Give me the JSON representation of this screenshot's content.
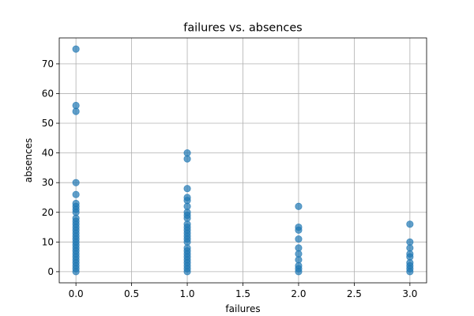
{
  "chart_data": {
    "type": "scatter",
    "title": "failures vs. absences",
    "xlabel": "failures",
    "ylabel": "absences",
    "xlim": [
      -0.15,
      3.15
    ],
    "ylim": [
      -3.75,
      78.75
    ],
    "xticks": [
      0.0,
      0.5,
      1.0,
      1.5,
      2.0,
      2.5,
      3.0
    ],
    "xtick_labels": [
      "0.0",
      "0.5",
      "1.0",
      "1.5",
      "2.0",
      "2.5",
      "3.0"
    ],
    "yticks": [
      0,
      10,
      20,
      30,
      40,
      50,
      60,
      70
    ],
    "ytick_labels": [
      "0",
      "10",
      "20",
      "30",
      "40",
      "50",
      "60",
      "70"
    ],
    "grid": true,
    "point_color": "#1f77b4",
    "point_alpha": 0.7,
    "points": [
      {
        "x": 0,
        "y": 0
      },
      {
        "x": 0,
        "y": 1
      },
      {
        "x": 0,
        "y": 2
      },
      {
        "x": 0,
        "y": 3
      },
      {
        "x": 0,
        "y": 4
      },
      {
        "x": 0,
        "y": 5
      },
      {
        "x": 0,
        "y": 6
      },
      {
        "x": 0,
        "y": 7
      },
      {
        "x": 0,
        "y": 8
      },
      {
        "x": 0,
        "y": 9
      },
      {
        "x": 0,
        "y": 10
      },
      {
        "x": 0,
        "y": 11
      },
      {
        "x": 0,
        "y": 12
      },
      {
        "x": 0,
        "y": 13
      },
      {
        "x": 0,
        "y": 14
      },
      {
        "x": 0,
        "y": 15
      },
      {
        "x": 0,
        "y": 16
      },
      {
        "x": 0,
        "y": 17
      },
      {
        "x": 0,
        "y": 18
      },
      {
        "x": 0,
        "y": 20
      },
      {
        "x": 0,
        "y": 21
      },
      {
        "x": 0,
        "y": 22
      },
      {
        "x": 0,
        "y": 23
      },
      {
        "x": 0,
        "y": 26
      },
      {
        "x": 0,
        "y": 30
      },
      {
        "x": 0,
        "y": 54
      },
      {
        "x": 0,
        "y": 56
      },
      {
        "x": 0,
        "y": 75
      },
      {
        "x": 1,
        "y": 0
      },
      {
        "x": 1,
        "y": 1
      },
      {
        "x": 1,
        "y": 2
      },
      {
        "x": 1,
        "y": 3
      },
      {
        "x": 1,
        "y": 4
      },
      {
        "x": 1,
        "y": 5
      },
      {
        "x": 1,
        "y": 6
      },
      {
        "x": 1,
        "y": 7
      },
      {
        "x": 1,
        "y": 8
      },
      {
        "x": 1,
        "y": 10
      },
      {
        "x": 1,
        "y": 11
      },
      {
        "x": 1,
        "y": 12
      },
      {
        "x": 1,
        "y": 13
      },
      {
        "x": 1,
        "y": 14
      },
      {
        "x": 1,
        "y": 15
      },
      {
        "x": 1,
        "y": 16
      },
      {
        "x": 1,
        "y": 18
      },
      {
        "x": 1,
        "y": 19
      },
      {
        "x": 1,
        "y": 20
      },
      {
        "x": 1,
        "y": 22
      },
      {
        "x": 1,
        "y": 24
      },
      {
        "x": 1,
        "y": 25
      },
      {
        "x": 1,
        "y": 28
      },
      {
        "x": 1,
        "y": 38
      },
      {
        "x": 1,
        "y": 40
      },
      {
        "x": 2,
        "y": 0
      },
      {
        "x": 2,
        "y": 1
      },
      {
        "x": 2,
        "y": 2
      },
      {
        "x": 2,
        "y": 4
      },
      {
        "x": 2,
        "y": 6
      },
      {
        "x": 2,
        "y": 8
      },
      {
        "x": 2,
        "y": 11
      },
      {
        "x": 2,
        "y": 14
      },
      {
        "x": 2,
        "y": 15
      },
      {
        "x": 2,
        "y": 22
      },
      {
        "x": 3,
        "y": 0
      },
      {
        "x": 3,
        "y": 1
      },
      {
        "x": 3,
        "y": 2
      },
      {
        "x": 3,
        "y": 3
      },
      {
        "x": 3,
        "y": 5
      },
      {
        "x": 3,
        "y": 6
      },
      {
        "x": 3,
        "y": 8
      },
      {
        "x": 3,
        "y": 10
      },
      {
        "x": 3,
        "y": 16
      }
    ]
  }
}
